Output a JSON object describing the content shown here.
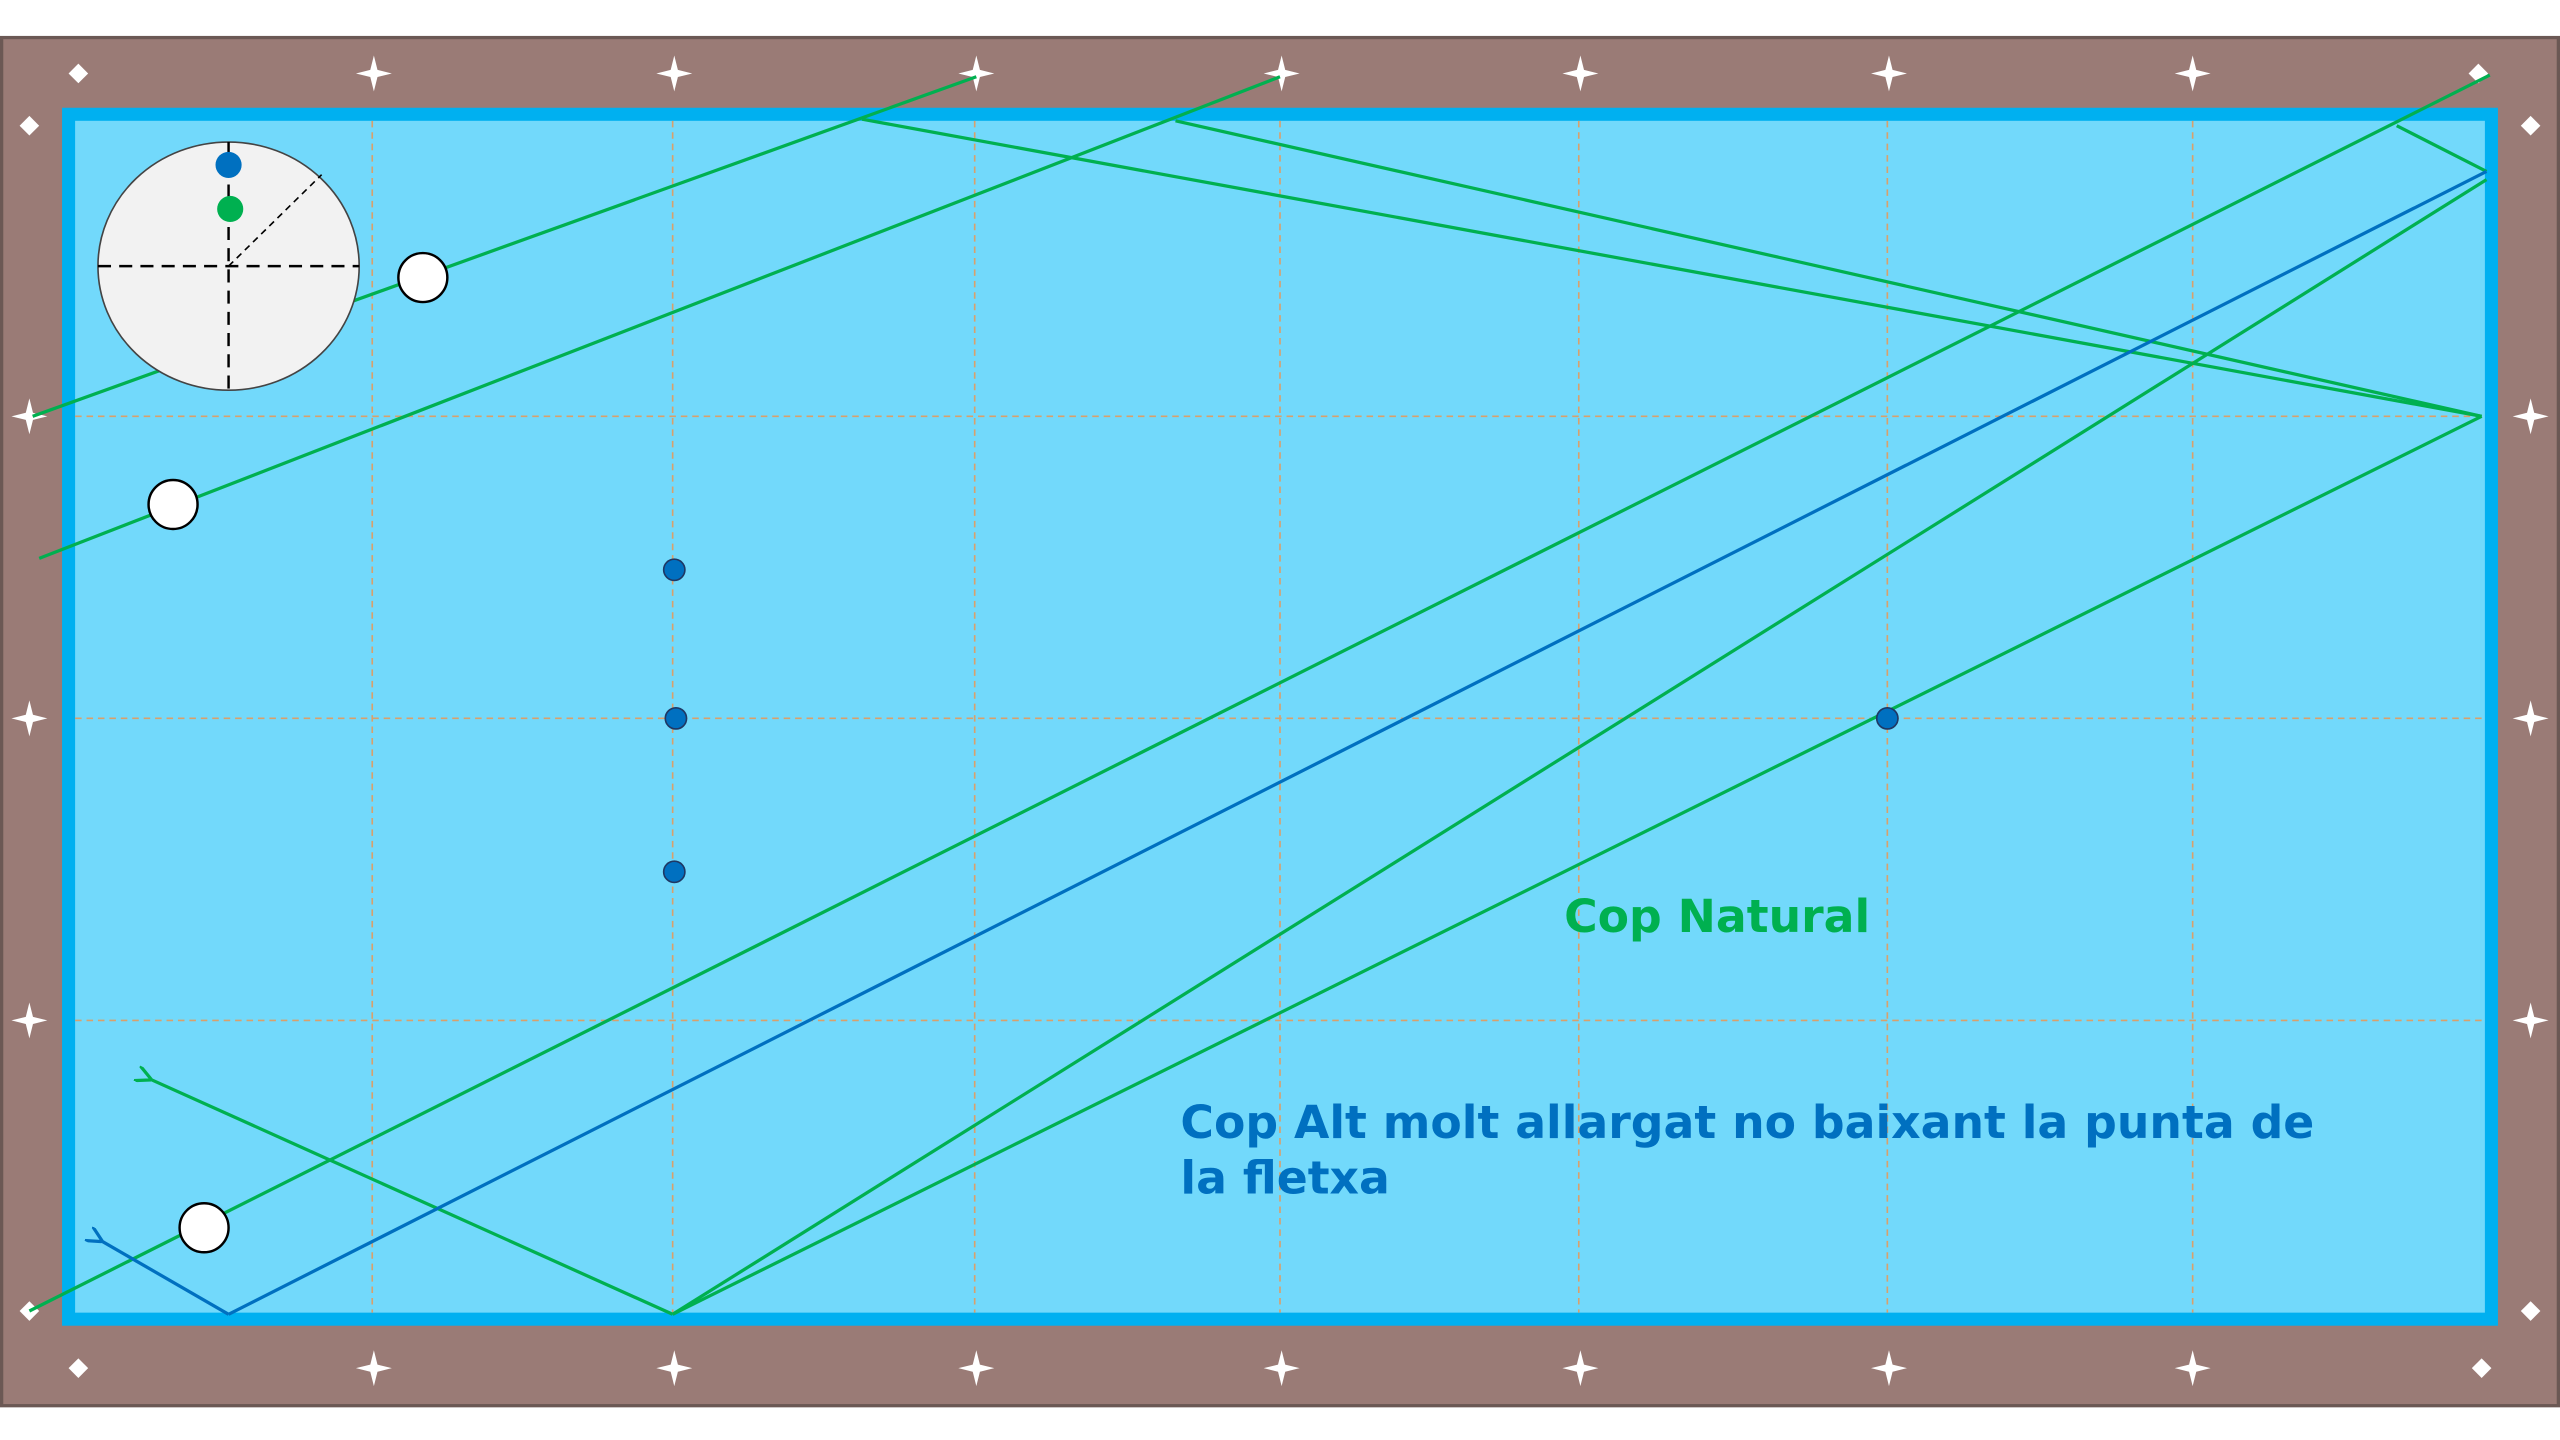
{
  "labels": {
    "natural": "Cop Natural",
    "alt": {
      "lines": [
        "Cop Alt molt allargat no baixant la punta de",
        "la fletxa"
      ]
    }
  }
}
